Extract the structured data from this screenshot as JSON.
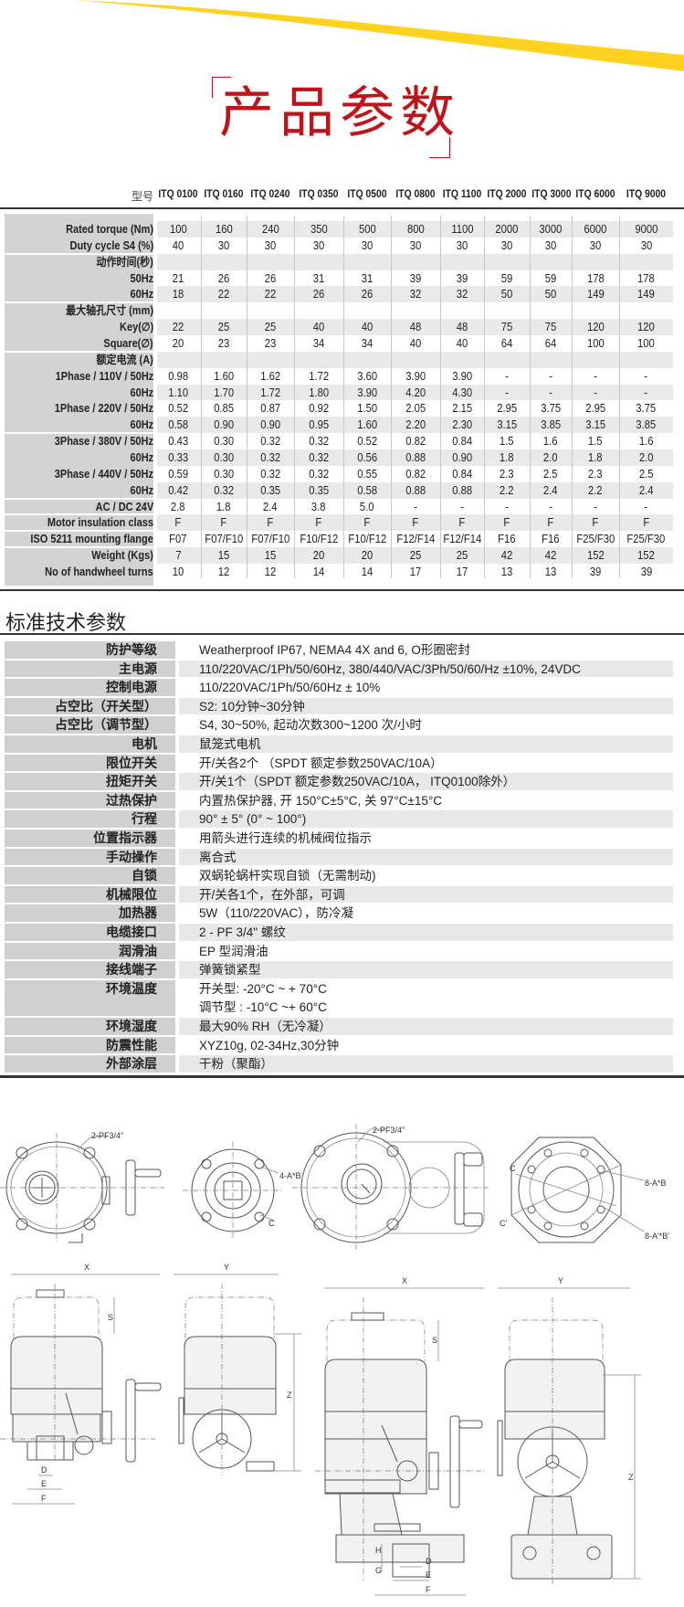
{
  "colors": {
    "title_red": "#c0141b",
    "swoosh_yellow": "#ffd21f",
    "label_gray": "#d3d3d3",
    "band_gray": "#e9e9e9"
  },
  "title": "产品参数",
  "spec_table": {
    "header_label": "型号",
    "models": [
      "ITQ 0100",
      "ITQ 0160",
      "ITQ 0240",
      "ITQ 0350",
      "ITQ 0500",
      "ITQ 0800",
      "ITQ 1100",
      "ITQ 2000",
      "ITQ 3000",
      "ITQ 6000",
      "ITQ 9000"
    ],
    "rows": [
      {
        "label": "Rated torque (Nm)",
        "values": [
          "100",
          "160",
          "240",
          "350",
          "500",
          "800",
          "1100",
          "2000",
          "3000",
          "6000",
          "9000"
        ]
      },
      {
        "label": "Duty cycle S4 (%)",
        "values": [
          "40",
          "30",
          "30",
          "30",
          "30",
          "30",
          "30",
          "30",
          "30",
          "30",
          "30"
        ]
      },
      {
        "label": "动作时间(秒)",
        "values": []
      },
      {
        "label": "50Hz",
        "values": [
          "21",
          "26",
          "26",
          "31",
          "31",
          "39",
          "39",
          "59",
          "59",
          "178",
          "178"
        ]
      },
      {
        "label": "60Hz",
        "values": [
          "18",
          "22",
          "22",
          "26",
          "26",
          "32",
          "32",
          "50",
          "50",
          "149",
          "149"
        ]
      },
      {
        "label": "最大轴孔尺寸 (mm)",
        "values": []
      },
      {
        "label": "Key(∅)",
        "values": [
          "22",
          "25",
          "25",
          "40",
          "40",
          "48",
          "48",
          "75",
          "75",
          "120",
          "120"
        ]
      },
      {
        "label": "Square(∅)",
        "values": [
          "20",
          "23",
          "23",
          "34",
          "34",
          "40",
          "40",
          "64",
          "64",
          "100",
          "100"
        ]
      },
      {
        "label": "额定电流 (A)",
        "values": []
      },
      {
        "label": "1Phase / 110V / 50Hz",
        "values": [
          "0.98",
          "1.60",
          "1.62",
          "1.72",
          "3.60",
          "3.90",
          "3.90",
          "-",
          "-",
          "-",
          "-"
        ]
      },
      {
        "label": "60Hz",
        "values": [
          "1.10",
          "1.70",
          "1.72",
          "1.80",
          "3.90",
          "4.20",
          "4.30",
          "-",
          "-",
          "-",
          "-"
        ]
      },
      {
        "label": "1Phase / 220V / 50Hz",
        "values": [
          "0.52",
          "0.85",
          "0.87",
          "0.92",
          "1.50",
          "2.05",
          "2.15",
          "2.95",
          "3.75",
          "2.95",
          "3.75"
        ]
      },
      {
        "label": "60Hz",
        "values": [
          "0.58",
          "0.90",
          "0.90",
          "0.95",
          "1.60",
          "2.20",
          "2.30",
          "3.15",
          "3.85",
          "3.15",
          "3.85"
        ]
      },
      {
        "label": "3Phase / 380V / 50Hz",
        "values": [
          "0.43",
          "0.30",
          "0.32",
          "0.32",
          "0.52",
          "0.82",
          "0.84",
          "1.5",
          "1.6",
          "1.5",
          "1.6"
        ]
      },
      {
        "label": "60Hz",
        "values": [
          "0.33",
          "0.30",
          "0.32",
          "0.32",
          "0.56",
          "0.88",
          "0.90",
          "1.8",
          "2.0",
          "1.8",
          "2.0"
        ]
      },
      {
        "label": "3Phase / 440V / 50Hz",
        "values": [
          "0.59",
          "0.30",
          "0.32",
          "0.32",
          "0.55",
          "0.82",
          "0.84",
          "2.3",
          "2.5",
          "2.3",
          "2.5"
        ]
      },
      {
        "label": "60Hz",
        "values": [
          "0.42",
          "0.32",
          "0.35",
          "0.35",
          "0.58",
          "0.88",
          "0.88",
          "2.2",
          "2.4",
          "2.2",
          "2.4"
        ]
      },
      {
        "label": "AC / DC 24V",
        "values": [
          "2.8",
          "1.8",
          "2.4",
          "3.8",
          "5.0",
          "-",
          "-",
          "-",
          "-",
          "-",
          "-"
        ]
      },
      {
        "label": "Motor insulation class",
        "values": [
          "F",
          "F",
          "F",
          "F",
          "F",
          "F",
          "F",
          "F",
          "F",
          "F",
          "F"
        ]
      },
      {
        "label": "ISO 5211 mounting flange",
        "values": [
          "F07",
          "F07/F10",
          "F07/F10",
          "F10/F12",
          "F10/F12",
          "F12/F14",
          "F12/F14",
          "F16",
          "F16",
          "F25/F30",
          "F25/F30"
        ]
      },
      {
        "label": "Weight (Kgs)",
        "values": [
          "7",
          "15",
          "15",
          "20",
          "20",
          "25",
          "25",
          "42",
          "42",
          "152",
          "152"
        ]
      },
      {
        "label": "No of handwheel turns",
        "values": [
          "10",
          "12",
          "12",
          "14",
          "14",
          "17",
          "17",
          "13",
          "13",
          "39",
          "39"
        ]
      }
    ]
  },
  "tech_section": {
    "title": "标准技术参数",
    "rows": [
      {
        "label": "防护等级",
        "lines": [
          "Weatherproof IP67, NEMA4 4X and 6, O形圈密封"
        ]
      },
      {
        "label": "主电源",
        "lines": [
          "110/220VAC/1Ph/50/60Hz, 380/440/VAC/3Ph/50/60/Hz ±10%, 24VDC"
        ]
      },
      {
        "label": "控制电源",
        "lines": [
          "110/220VAC/1Ph/50/60Hz ± 10%"
        ]
      },
      {
        "label": "占空比（开关型）",
        "lines": [
          "S2: 10分钟~30分钟"
        ]
      },
      {
        "label": "占空比（调节型）",
        "lines": [
          "S4, 30~50%, 起动次数300~1200 次/小时"
        ]
      },
      {
        "label": "电机",
        "lines": [
          "鼠笼式电机"
        ]
      },
      {
        "label": "限位开关",
        "lines": [
          "开/关各2个 （SPDT 额定参数250VAC/10A）"
        ]
      },
      {
        "label": "扭矩开关",
        "lines": [
          "开/关1个（SPDT 额定参数250VAC/10A， ITQ0100除外）"
        ]
      },
      {
        "label": "过热保护",
        "lines": [
          "内置热保护器, 开 150°C±5°C, 关 97°C±15°C"
        ]
      },
      {
        "label": "行程",
        "lines": [
          "90° ±  5° (0° ~ 100°)"
        ]
      },
      {
        "label": "位置指示器",
        "lines": [
          "用箭头进行连续的机械阀位指示"
        ]
      },
      {
        "label": "手动操作",
        "lines": [
          "离合式"
        ]
      },
      {
        "label": "自锁",
        "lines": [
          "双蜗轮蜗杆实现自锁（无需制动)"
        ]
      },
      {
        "label": "机械限位",
        "lines": [
          "开/关各1个，在外部，可调"
        ]
      },
      {
        "label": "加热器",
        "lines": [
          "5W（110/220VAC），防冷凝"
        ]
      },
      {
        "label": "电缆接口",
        "lines": [
          "2 - PF 3/4\" 螺纹"
        ]
      },
      {
        "label": "润滑油",
        "lines": [
          "EP 型润滑油"
        ]
      },
      {
        "label": "接线端子",
        "lines": [
          "弹簧锁紧型"
        ]
      },
      {
        "label": "环境温度",
        "lines": [
          "开关型: -20°C ~ + 70°C",
          "调节型 : -10°C ~+ 60°C"
        ]
      },
      {
        "label": "环境湿度",
        "lines": [
          "最大90% RH（无冷凝）"
        ]
      },
      {
        "label": "防震性能",
        "lines": [
          "XYZ10g, 02-34Hz,30分钟"
        ]
      },
      {
        "label": "外部涂层",
        "lines": [
          "干粉（聚酯）"
        ]
      }
    ]
  },
  "drawings": {
    "labels": {
      "conduit_left": "2-PF3/4\"",
      "bolt_holes_left": "4-A*B",
      "c_left": "C",
      "conduit_right": "2-PF3/4\"",
      "bolt_holes_right_1": "8-A*B",
      "bolt_holes_right_2": "8-A'*B'",
      "c_right": "C",
      "c_prime_right": "C'",
      "x_left": "X",
      "y_left": "Y",
      "s_left": "S",
      "z_left": "Z",
      "d_left": "D",
      "e_left": "E",
      "f_left": "F",
      "x_right": "X",
      "y_right": "Y",
      "s_right": "S",
      "z_right": "Z",
      "h_right": "H",
      "g_right": "G",
      "d_right": "D",
      "e_right": "E",
      "f_right": "F"
    }
  }
}
